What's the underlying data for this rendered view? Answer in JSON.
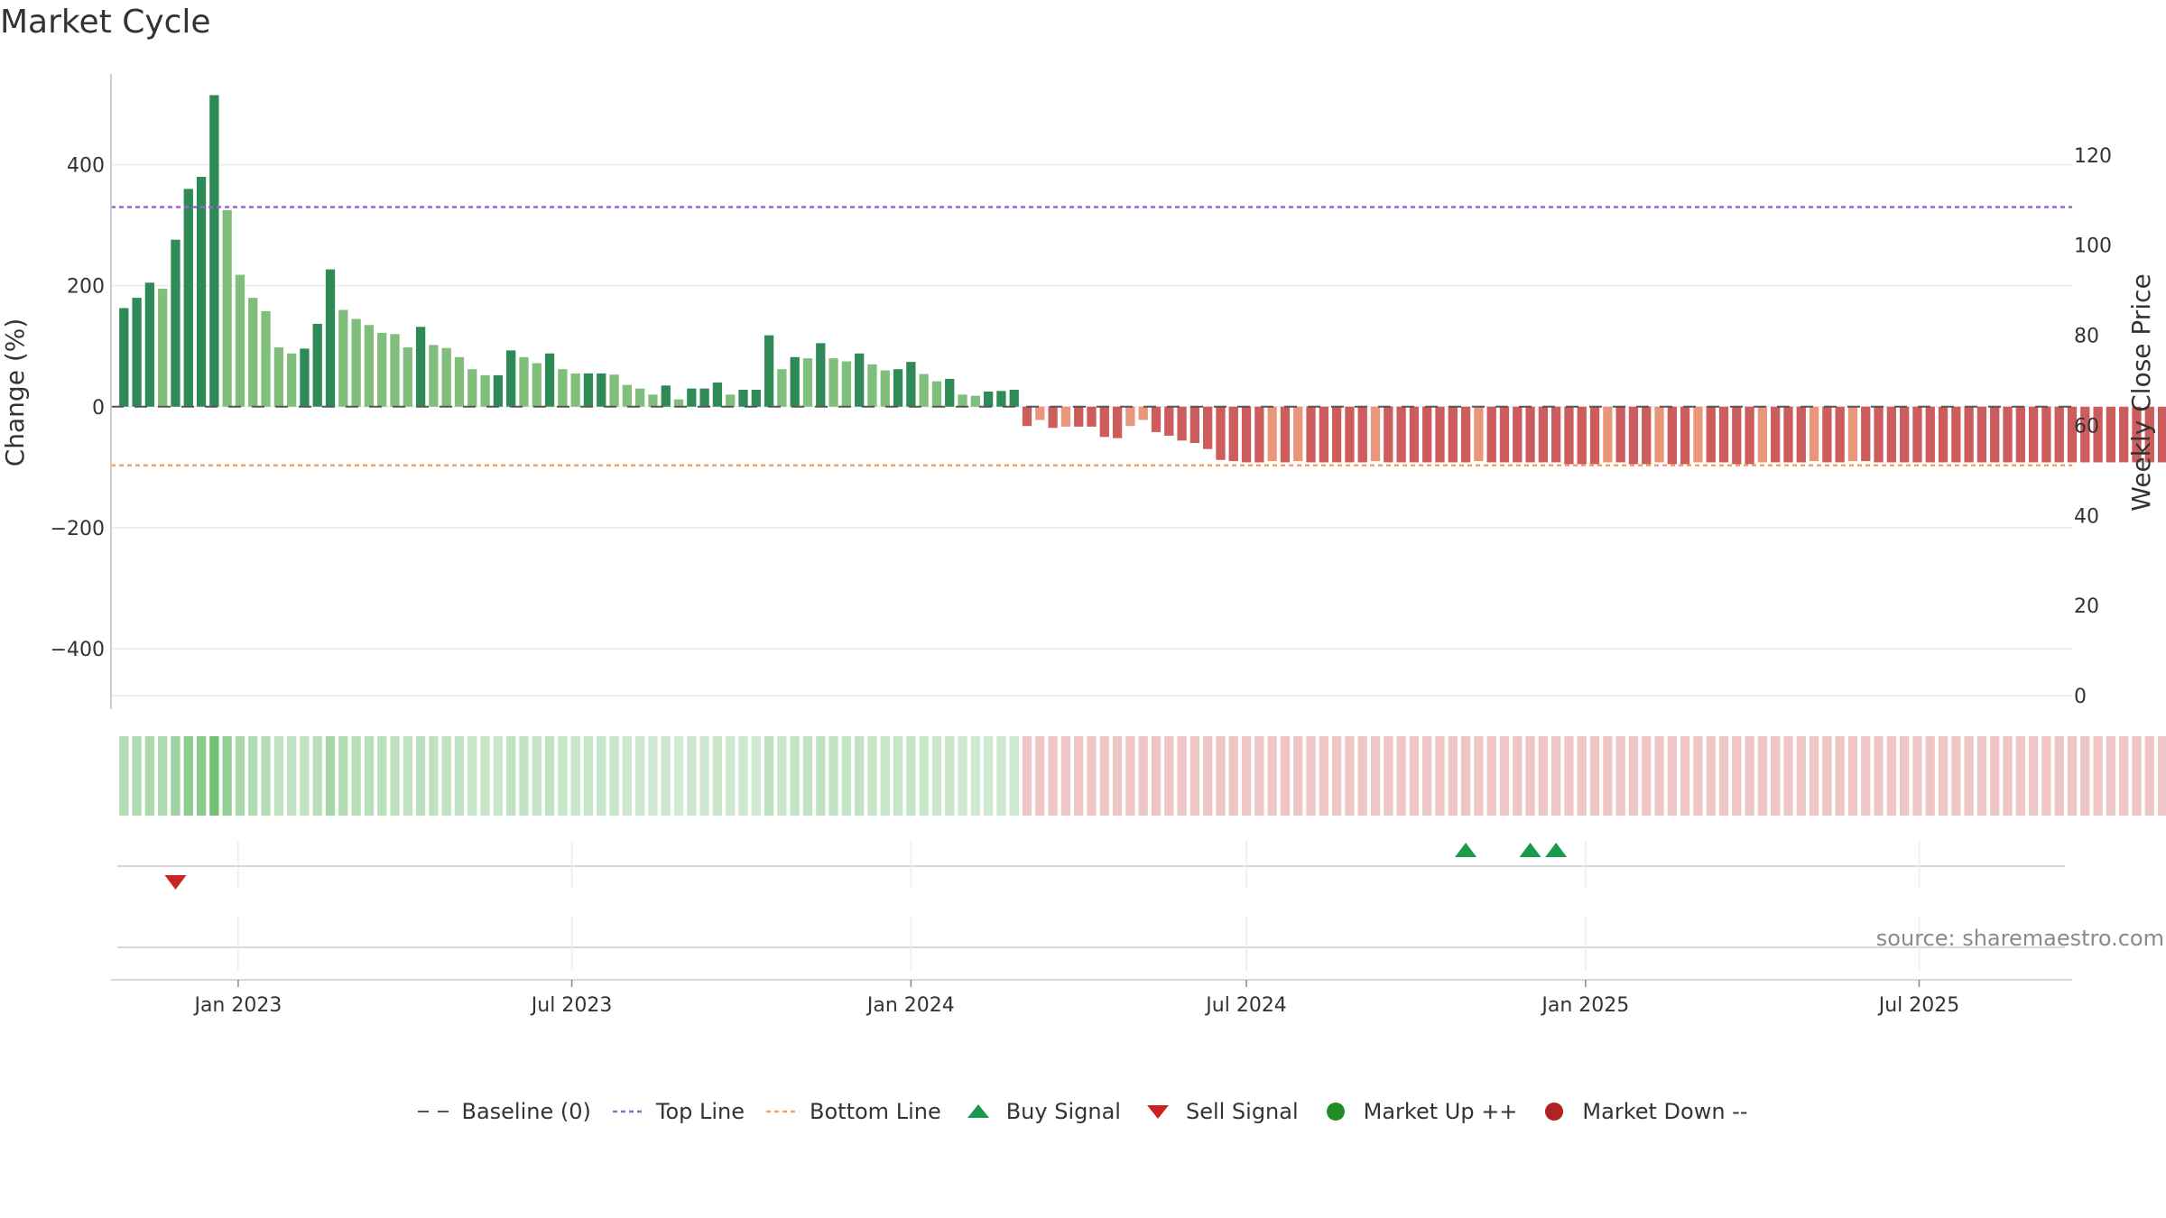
{
  "title": "Market Cycle",
  "source": "source: sharemaestro.com",
  "chart_data": {
    "type": "bar",
    "title": "Market Cycle",
    "ylabel": "Change (%)",
    "y2label": "Weekly Close Price",
    "ylim": [
      -500,
      550
    ],
    "y_ticks": [
      -400,
      -200,
      0,
      200,
      400
    ],
    "y2lim": [
      -3,
      138
    ],
    "y2_ticks": [
      0,
      20,
      40,
      60,
      80,
      100,
      120
    ],
    "x_range": [
      "2022-10-24",
      "2025-09-22"
    ],
    "x_ticks": [
      {
        "date": "2023-01-01",
        "label": "Jan 2023"
      },
      {
        "date": "2023-07-01",
        "label": "Jul 2023"
      },
      {
        "date": "2024-01-01",
        "label": "Jan 2024"
      },
      {
        "date": "2024-07-01",
        "label": "Jul 2024"
      },
      {
        "date": "2025-01-01",
        "label": "Jan 2025"
      },
      {
        "date": "2025-07-01",
        "label": "Jul 2025"
      }
    ],
    "start_week": "2022-10-31",
    "week_step_days": 7,
    "weekly_change_pct": [
      163,
      180,
      205,
      195,
      276,
      360,
      380,
      515,
      325,
      218,
      180,
      158,
      98,
      88,
      96,
      137,
      227,
      160,
      145,
      135,
      122,
      120,
      98,
      132,
      102,
      97,
      82,
      62,
      52,
      52,
      93,
      82,
      72,
      88,
      62,
      55,
      55,
      55,
      53,
      36,
      30,
      20,
      35,
      12,
      30,
      30,
      40,
      20,
      28,
      28,
      118,
      62,
      82,
      80,
      105,
      80,
      75,
      88,
      70,
      60,
      62,
      74,
      54,
      42,
      46,
      20,
      18,
      25,
      26,
      28,
      -32,
      -22,
      -35,
      -33,
      -33,
      -33,
      -50,
      -52,
      -32,
      -22,
      -42,
      -48,
      -56,
      -60,
      -70,
      -88,
      -90,
      -92,
      -92,
      -90,
      -92,
      -90,
      -92,
      -92,
      -92,
      -92,
      -92,
      -90,
      -92,
      -92,
      -92,
      -92,
      -92,
      -92,
      -92,
      -90,
      -92,
      -92,
      -92,
      -92,
      -92,
      -92,
      -95,
      -95,
      -95,
      -92,
      -92,
      -95,
      -95,
      -92,
      -95,
      -95,
      -92,
      -92,
      -92,
      -95,
      -95,
      -92,
      -92,
      -92,
      -92,
      -90,
      -92,
      -92,
      -90,
      -90,
      -92,
      -92,
      -92,
      -92,
      -92,
      -92,
      -92,
      -92,
      -92,
      -92,
      -92,
      -92,
      -92,
      -92,
      -92,
      -92,
      -92,
      -92,
      -92,
      -92,
      -92,
      -92,
      -92,
      -92,
      -92,
      -92
    ],
    "top_line": 330,
    "bottom_line": -97,
    "baseline": 0,
    "buy_signals": [
      "2024-10-28",
      "2024-12-02",
      "2024-12-16"
    ],
    "sell_signals": [
      "2022-11-28"
    ],
    "colors": {
      "strong_up": "#2e8b57",
      "weak_up": "#7fbf7b",
      "strong_down": "#cd5c5c",
      "weak_down": "#e9967a",
      "top_line": "#9966cc",
      "bottom_line": "#f4a460",
      "baseline": "#555555",
      "buy": "#1a9a4a",
      "sell": "#cc2222",
      "market_up": "#228b22",
      "market_down": "#b22222"
    },
    "legend": [
      {
        "key": "baseline",
        "label": "Baseline (0)"
      },
      {
        "key": "top",
        "label": "Top Line"
      },
      {
        "key": "bottom",
        "label": "Bottom Line"
      },
      {
        "key": "buy",
        "label": "Buy Signal"
      },
      {
        "key": "sell",
        "label": "Sell Signal"
      },
      {
        "key": "up",
        "label": "Market Up ++"
      },
      {
        "key": "down",
        "label": "Market Down --"
      }
    ]
  }
}
